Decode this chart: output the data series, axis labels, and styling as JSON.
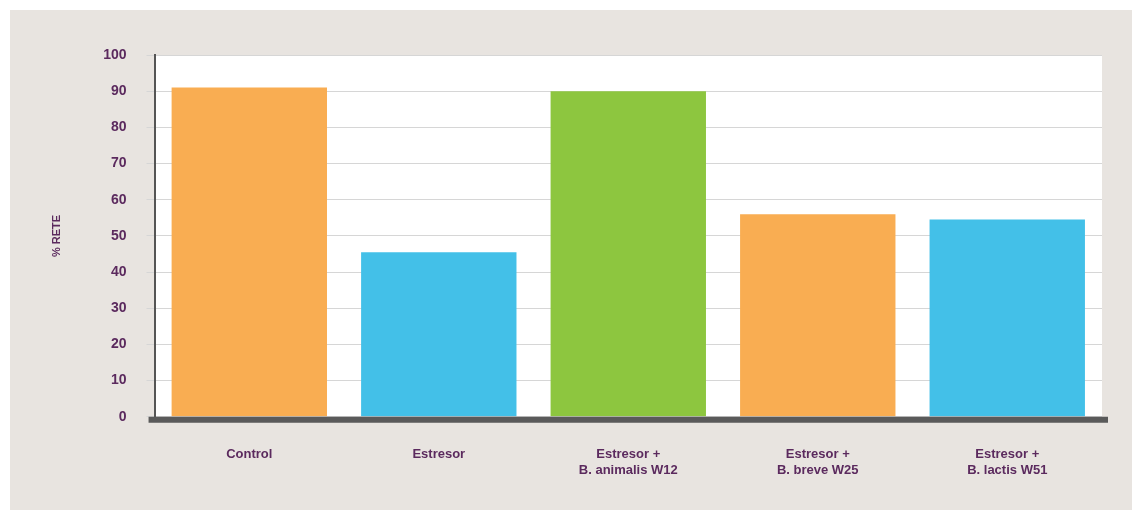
{
  "chart_data": {
    "type": "bar",
    "ylabel": "% RETE",
    "categories": [
      "Control",
      "Estresor",
      "Estresor +\nB. animalis W12",
      "Estresor +\nB. breve W25",
      "Estresor +\nB. lactis W51"
    ],
    "values": [
      91,
      45.5,
      90,
      56,
      54.5
    ],
    "colors": [
      "#f9ad52",
      "#43c0e8",
      "#8dc63f",
      "#f9ad52",
      "#43c0e8"
    ],
    "ylim": [
      0,
      100
    ],
    "yticks": [
      0,
      10,
      20,
      30,
      40,
      50,
      60,
      70,
      80,
      90,
      100
    ],
    "grid": "y",
    "legend": false
  }
}
